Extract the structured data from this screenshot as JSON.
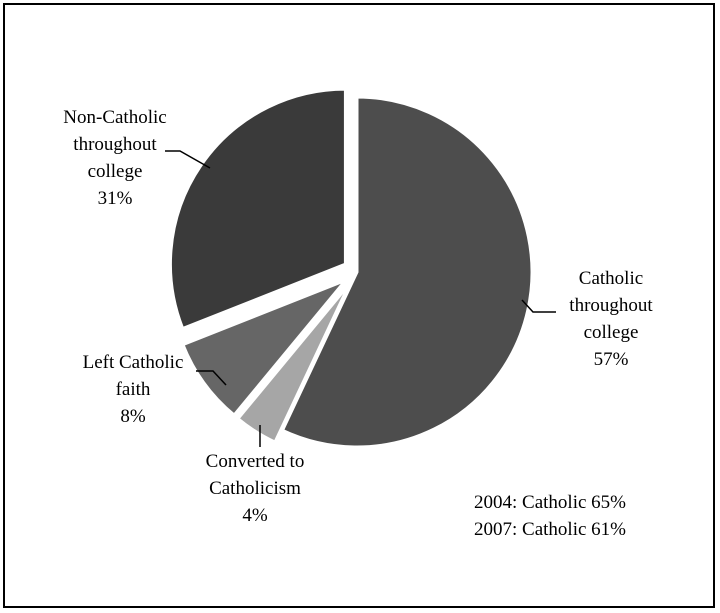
{
  "chart_data": {
    "type": "pie",
    "slices": [
      {
        "label_lines": [
          "Catholic",
          "throughout",
          "college"
        ],
        "value": 57,
        "pct": "57%",
        "color": "#4d4d4d",
        "exploded": false
      },
      {
        "label_lines": [
          "Converted to",
          "Catholicism"
        ],
        "value": 4,
        "pct": "4%",
        "color": "#a6a6a6",
        "exploded": true
      },
      {
        "label_lines": [
          "Left Catholic",
          "faith"
        ],
        "value": 8,
        "pct": "8%",
        "color": "#666666",
        "exploded": true
      },
      {
        "label_lines": [
          "Non-Catholic",
          "throughout",
          "college"
        ],
        "value": 31,
        "pct": "31%",
        "color": "#3a3a3a",
        "exploded": true
      }
    ],
    "annotations": [
      "2004: Catholic 65%",
      "2007: Catholic 61%"
    ]
  }
}
